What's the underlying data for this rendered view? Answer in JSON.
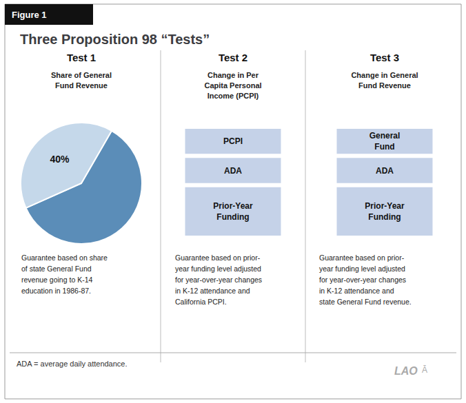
{
  "title": "Three Proposition 98 “Tests”",
  "annotations": [
    "Figure 1",
    "ADA = average daily attendance.",
    "LAO",
    "Ā"
  ],
  "chart_data": [
    {
      "type": "pie",
      "title": "Test 1",
      "subtitle": "Share of General\nFund Revenue",
      "values": [
        60,
        40
      ],
      "colors": [
        "#5b8db8",
        "#c5d8ea"
      ],
      "data_labels": true,
      "value_labels": [
        null,
        "40%"
      ],
      "annotations": [
        "Guarantee based on share\nof state General Fund\nrevenue going to K-14\neducation in 1986-87."
      ]
    },
    {
      "type": "bar",
      "stacked": true,
      "title": "Test 2",
      "subtitle": "Change in Per\nCapita Personal\nIncome (PCPI)",
      "categories": [
        "PCPI",
        "ADA",
        "Prior-Year\nFunding"
      ],
      "values": [
        1,
        1,
        1.8
      ],
      "color": "#c5d2e8",
      "ylim": [
        0,
        3.8
      ],
      "tick_labels": false,
      "annotations": [
        "Guarantee based on prior-\nyear funding level adjusted\nfor year-over-year changes\nin K-12 attendance and\nCalifornia PCPI."
      ]
    },
    {
      "type": "bar",
      "stacked": true,
      "title": "Test 3",
      "subtitle": "Change in General\nFund Revenue",
      "categories": [
        "General\nFund",
        "ADA",
        "Prior-Year\nFunding"
      ],
      "values": [
        1,
        1,
        1.8
      ],
      "color": "#c5d2e8",
      "ylim": [
        0,
        3.8
      ],
      "tick_labels": false,
      "annotations": [
        "Guarantee based on prior-\nyear funding level adjusted\nfor year-over-year changes\nin K-12 attendance and\nstate General Fund revenue."
      ]
    }
  ]
}
